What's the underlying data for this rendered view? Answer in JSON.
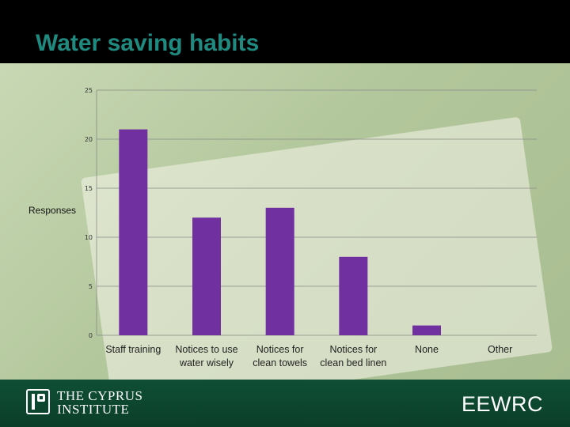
{
  "slide": {
    "title": "Water saving habits",
    "footer_logo_line1": "THE CYPRUS",
    "footer_logo_line2": "INSTITUTE",
    "footer_brand": "EEWRC",
    "colors": {
      "title": "#1f8a80",
      "bar": "#7030a0",
      "footer": "#0f4f35"
    }
  },
  "chart_data": {
    "type": "bar",
    "title": "",
    "xlabel": "",
    "ylabel": "Responses",
    "categories": [
      [
        "Staff training"
      ],
      [
        "Notices to use",
        "water wisely"
      ],
      [
        "Notices for",
        "clean towels"
      ],
      [
        "Notices for",
        "clean bed linen"
      ],
      [
        "None"
      ],
      [
        "Other"
      ]
    ],
    "values": [
      21,
      12,
      13,
      8,
      1,
      0
    ],
    "ylim": [
      0,
      25
    ],
    "yticks": [
      0,
      5,
      10,
      15,
      20,
      25
    ],
    "grid": true,
    "legend": "none"
  }
}
